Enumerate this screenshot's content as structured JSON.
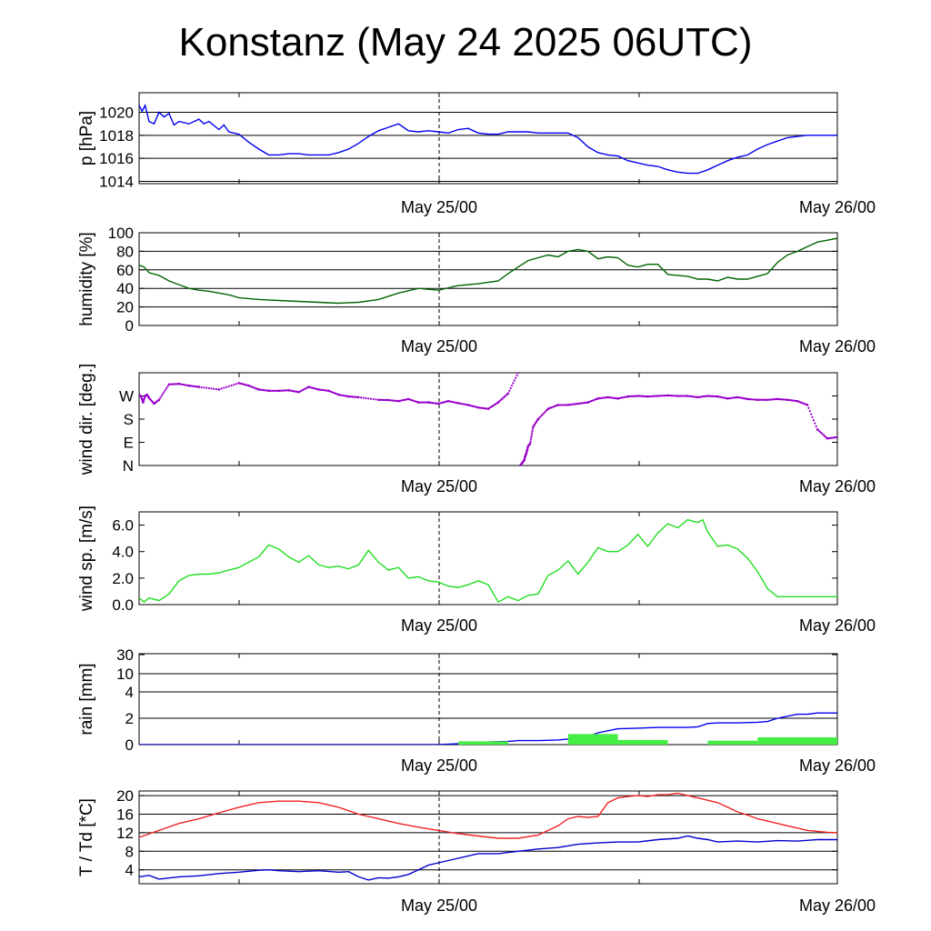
{
  "chart_data": [
    {
      "type": "line",
      "title": "Konstanz (May 24 2025 06UTC)",
      "ylabel": "p [hPa]",
      "x_ticks": [
        "May 25/00",
        "May 26/00"
      ],
      "x_start": "May 24 06UTC",
      "ylim": [
        1013.8,
        1021.7
      ],
      "yticks": [
        1014,
        1016,
        1018,
        1020
      ],
      "hgrid": [
        1014,
        1016,
        1018,
        1020
      ],
      "grid": true,
      "series": [
        {
          "color": "#0000ee",
          "x": [
            0,
            0.3,
            0.6,
            1,
            1.5,
            2,
            2.5,
            3,
            3.5,
            4,
            5,
            6,
            6.5,
            7,
            8,
            8.5,
            9,
            10,
            11,
            12,
            13,
            14,
            15,
            16,
            17,
            18,
            19,
            20,
            21,
            22,
            23,
            24,
            25,
            26,
            27,
            28,
            29,
            30,
            31,
            32,
            33,
            34,
            35,
            36,
            37,
            38,
            39,
            40,
            41,
            42,
            43,
            44,
            45,
            46,
            47,
            48,
            49,
            50,
            51,
            52,
            53,
            54,
            55,
            56,
            57,
            58,
            59,
            60,
            61,
            62,
            63,
            64,
            65,
            66,
            67,
            68,
            69,
            70
          ],
          "values": [
            1020.6,
            1020.1,
            1020.6,
            1019.2,
            1019.0,
            1020.0,
            1019.6,
            1019.9,
            1018.9,
            1019.2,
            1019.0,
            1019.4,
            1019.0,
            1019.2,
            1018.5,
            1018.9,
            1018.3,
            1018.1,
            1017.4,
            1016.8,
            1016.3,
            1016.3,
            1016.4,
            1016.4,
            1016.3,
            1016.3,
            1016.3,
            1016.5,
            1016.8,
            1017.3,
            1017.9,
            1018.4,
            1018.7,
            1019.0,
            1018.4,
            1018.3,
            1018.4,
            1018.3,
            1018.2,
            1018.5,
            1018.6,
            1018.2,
            1018.1,
            1018.1,
            1018.3,
            1018.3,
            1018.3,
            1018.2,
            1018.2,
            1018.2,
            1018.2,
            1017.8,
            1017.0,
            1016.5,
            1016.3,
            1016.2,
            1015.8,
            1015.6,
            1015.4,
            1015.3,
            1015.0,
            1014.8,
            1014.7,
            1014.7,
            1015.0,
            1015.4,
            1015.8,
            1016.1,
            1016.3,
            1016.8,
            1017.2,
            1017.5,
            1017.8,
            1017.9,
            1018.0,
            1018.0,
            1018.0,
            1018.0
          ]
        }
      ]
    },
    {
      "type": "line",
      "ylabel": "humidity [%]",
      "x_ticks": [
        "May 25/00",
        "May 26/00"
      ],
      "ylim": [
        0,
        100
      ],
      "yticks": [
        0,
        20,
        40,
        60,
        80,
        100
      ],
      "hgrid": [
        20,
        40,
        60,
        80
      ],
      "grid": true,
      "series": [
        {
          "color": "#006400",
          "x": [
            0,
            0.5,
            1,
            2,
            3,
            4,
            5,
            6,
            7,
            8,
            9,
            10,
            12,
            14,
            16,
            18,
            20,
            22,
            24,
            26,
            28,
            30,
            32,
            34,
            36,
            37,
            38,
            39,
            40,
            41,
            42,
            43,
            44,
            45,
            46,
            47,
            48,
            49,
            50,
            51,
            52,
            53,
            54,
            55,
            56,
            57,
            58,
            59,
            60,
            61,
            62,
            63,
            64,
            65,
            66,
            67,
            68,
            69,
            70
          ],
          "values": [
            65,
            63,
            57,
            54,
            48,
            44,
            40,
            38,
            37,
            35,
            33,
            30,
            28,
            27,
            26,
            25,
            24,
            25,
            28,
            35,
            40,
            38,
            43,
            45,
            48,
            56,
            63,
            70,
            73,
            76,
            74,
            80,
            82,
            80,
            72,
            74,
            73,
            65,
            63,
            66,
            66,
            55,
            54,
            53,
            50,
            50,
            48,
            52,
            50,
            50,
            53,
            56,
            68,
            76,
            80,
            85,
            90,
            92,
            94
          ]
        }
      ]
    },
    {
      "type": "scatter",
      "ylabel": "wind dir. [deg.]",
      "x_ticks": [
        "May 25/00",
        "May 26/00"
      ],
      "ylim": [
        0,
        360
      ],
      "ytick_values": [
        0,
        90,
        180,
        270
      ],
      "yticks": [
        "N",
        "E",
        "S",
        "W"
      ],
      "grid": false,
      "series": [
        {
          "color": "#9900cc",
          "x": [
            0,
            0.2,
            0.4,
            0.6,
            0.8,
            1,
            1.5,
            2,
            3,
            4,
            5,
            6,
            8,
            10,
            11,
            12,
            13,
            14,
            15,
            16,
            17,
            18,
            19,
            20,
            21,
            22,
            24,
            25,
            26,
            27,
            28,
            29,
            30,
            31,
            32,
            33,
            34,
            35,
            36,
            37,
            38,
            38.2,
            38.4,
            38.6,
            38.7,
            38.8,
            38.9,
            39,
            39.2,
            39.5,
            40,
            41,
            42,
            43,
            44,
            45,
            46,
            47,
            48,
            49,
            50,
            51,
            52,
            53,
            54,
            55,
            56,
            57,
            58,
            59,
            60,
            61,
            62,
            63,
            64,
            65,
            66,
            67,
            68,
            69,
            70
          ],
          "values": [
            275,
            268,
            245,
            270,
            275,
            262,
            240,
            255,
            315,
            317,
            310,
            305,
            295,
            320,
            310,
            295,
            290,
            290,
            292,
            285,
            305,
            295,
            290,
            275,
            268,
            265,
            255,
            254,
            250,
            258,
            245,
            245,
            240,
            250,
            242,
            235,
            225,
            220,
            245,
            280,
            360,
            0,
            10,
            20,
            35,
            45,
            60,
            75,
            85,
            150,
            180,
            220,
            235,
            235,
            240,
            245,
            260,
            265,
            260,
            268,
            270,
            268,
            270,
            272,
            270,
            270,
            265,
            270,
            268,
            260,
            265,
            258,
            255,
            255,
            258,
            255,
            250,
            235,
            140,
            105,
            110
          ]
        }
      ]
    },
    {
      "type": "line",
      "ylabel": "wind sp. [m/s]",
      "x_ticks": [
        "May 25/00",
        "May 26/00"
      ],
      "ylim": [
        0,
        7
      ],
      "yticks": [
        0,
        2,
        4,
        6
      ],
      "ytick_labels": [
        "0.0",
        "2.0",
        "4.0",
        "6.0"
      ],
      "grid": false,
      "series": [
        {
          "color": "#22dd22",
          "x": [
            0,
            0.5,
            1,
            2,
            3,
            4,
            5,
            6,
            7,
            8,
            9,
            10,
            11,
            12,
            13,
            14,
            15,
            16,
            17,
            18,
            19,
            20,
            21,
            22,
            23,
            24,
            25,
            26,
            27,
            28,
            29,
            30,
            31,
            32,
            33,
            34,
            35,
            36,
            37,
            38,
            39,
            40,
            41,
            42,
            43,
            44,
            45,
            46,
            47,
            48,
            49,
            50,
            51,
            52,
            53,
            54,
            55,
            56,
            56.5,
            57,
            58,
            59,
            60,
            61,
            62,
            63,
            64,
            65,
            66,
            67,
            68,
            69,
            70
          ],
          "values": [
            0.5,
            0.2,
            0.5,
            0.3,
            0.8,
            1.8,
            2.2,
            2.3,
            2.3,
            2.4,
            2.6,
            2.8,
            3.2,
            3.6,
            4.5,
            4.2,
            3.6,
            3.2,
            3.7,
            3.0,
            2.8,
            2.9,
            2.7,
            3.0,
            4.1,
            3.2,
            2.6,
            2.8,
            2.0,
            2.1,
            1.8,
            1.7,
            1.4,
            1.3,
            1.5,
            1.8,
            1.5,
            0.2,
            0.6,
            0.3,
            0.7,
            0.8,
            2.2,
            2.6,
            3.3,
            2.3,
            3.2,
            4.3,
            4.0,
            4.0,
            4.5,
            5.3,
            4.4,
            5.4,
            6.1,
            5.8,
            6.4,
            6.2,
            6.4,
            5.5,
            4.4,
            4.5,
            4.2,
            3.5,
            2.5,
            1.2,
            0.6,
            0.6,
            0.6,
            0.6,
            0.6,
            0.6,
            0.6
          ]
        }
      ]
    },
    {
      "type": "line",
      "ylabel": "rain [mm]",
      "x_ticks": [
        "May 25/00",
        "May 26/00"
      ],
      "yticks": [
        "0",
        "2",
        "4",
        "10",
        "30"
      ],
      "ytick_values": [
        0,
        2,
        4,
        10,
        30
      ],
      "hgrid": [
        2,
        4,
        10
      ],
      "grid": true,
      "series": [
        {
          "color": "#0000ee",
          "x": [
            0,
            30,
            33,
            35,
            37,
            38,
            40,
            42,
            44,
            45,
            46,
            48,
            50,
            52,
            54,
            55,
            56,
            57,
            58,
            60,
            62,
            63,
            64,
            66,
            67,
            68,
            70
          ],
          "values": [
            0,
            0,
            0.1,
            0.2,
            0.25,
            0.3,
            0.3,
            0.35,
            0.5,
            0.6,
            0.9,
            1.2,
            1.25,
            1.3,
            1.3,
            1.3,
            1.35,
            1.6,
            1.65,
            1.65,
            1.7,
            1.75,
            2.0,
            2.3,
            2.3,
            2.4,
            2.4
          ]
        },
        {
          "type": "bar",
          "color": "#44ee44",
          "x_start": [
            32,
            43,
            48,
            57,
            62
          ],
          "x_end": [
            37,
            48,
            53,
            62,
            70
          ],
          "values": [
            0.25,
            0.8,
            0.35,
            0.3,
            0.55
          ]
        }
      ]
    },
    {
      "type": "line",
      "ylabel": "T / Td [*C]",
      "x_ticks": [
        "May 25/00",
        "May 26/00"
      ],
      "ylim": [
        1,
        21
      ],
      "yticks": [
        4,
        8,
        12,
        16,
        20
      ],
      "hgrid": [
        4,
        8,
        12,
        16,
        20
      ],
      "grid": true,
      "series": [
        {
          "name": "T",
          "color": "#ee2222",
          "x": [
            0,
            2,
            4,
            6,
            8,
            10,
            12,
            14,
            16,
            18,
            20,
            22,
            24,
            26,
            28,
            30,
            32,
            34,
            36,
            38,
            40,
            41,
            42,
            43,
            44,
            45,
            46,
            47,
            48,
            49,
            50,
            51,
            52,
            53,
            54,
            55,
            56,
            57,
            58,
            59,
            60,
            61,
            62,
            63,
            64,
            65,
            66,
            67,
            68,
            69,
            70
          ],
          "values": [
            11,
            12.5,
            14,
            15,
            16.3,
            17.5,
            18.5,
            18.8,
            18.8,
            18.5,
            17.5,
            16,
            15,
            14,
            13.2,
            12.5,
            11.8,
            11.3,
            10.8,
            10.8,
            11.5,
            12.5,
            13.5,
            15,
            15.5,
            15.3,
            15.5,
            18.5,
            19.5,
            19.8,
            20,
            19.8,
            20.2,
            20.2,
            20.5,
            20,
            19.5,
            19,
            18.5,
            17.5,
            16.5,
            15.8,
            15,
            14.5,
            14,
            13.5,
            13,
            12.5,
            12.3,
            12.1,
            12.0
          ]
        },
        {
          "name": "Td",
          "color": "#0000cc",
          "x": [
            0,
            1,
            2,
            4,
            6,
            8,
            10,
            12,
            13,
            14,
            16,
            18,
            20,
            21,
            22,
            23,
            24,
            25,
            26,
            27,
            28,
            29,
            30,
            32,
            34,
            36,
            38,
            40,
            42,
            44,
            46,
            48,
            50,
            52,
            54,
            55,
            56,
            57,
            58,
            60,
            62,
            64,
            66,
            68,
            70
          ],
          "values": [
            2.5,
            2.8,
            2.0,
            2.5,
            2.7,
            3.2,
            3.5,
            3.9,
            4.0,
            3.8,
            3.6,
            3.8,
            3.5,
            3.6,
            2.5,
            1.8,
            2.3,
            2.2,
            2.5,
            3.0,
            4.0,
            5.0,
            5.5,
            6.5,
            7.5,
            7.5,
            8.0,
            8.5,
            8.8,
            9.5,
            9.8,
            10.0,
            10.0,
            10.5,
            10.8,
            11.3,
            10.8,
            10.5,
            10.0,
            10.2,
            10.0,
            10.3,
            10.2,
            10.5,
            10.5
          ]
        }
      ]
    }
  ]
}
